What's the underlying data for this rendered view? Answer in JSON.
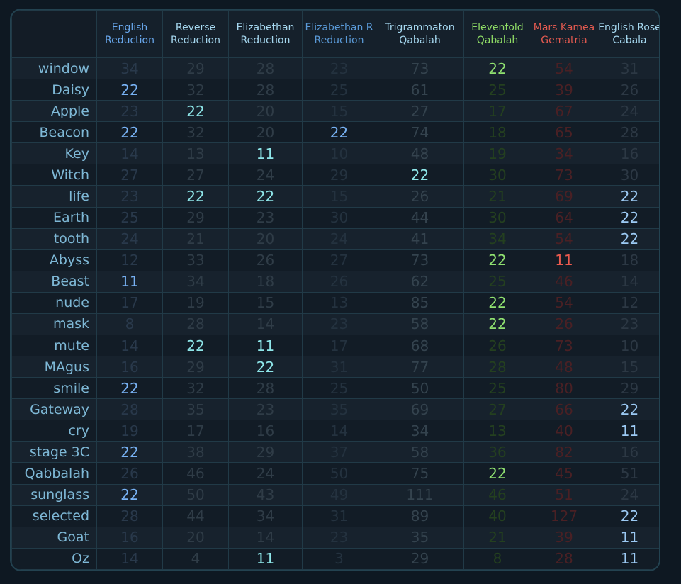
{
  "columns": [
    {
      "label": "English Reduction",
      "color": "#69a8ee",
      "dim": "#29394b",
      "hit": "#78b2f4"
    },
    {
      "label": "Reverse Reduction",
      "color": "#a6d8f0",
      "dim": "#2f3c47",
      "hit": "#8ee6e9"
    },
    {
      "label": "Elizabethan Reduction",
      "color": "#a6d8f0",
      "dim": "#2f3c47",
      "hit": "#8ee6e9"
    },
    {
      "label": "Elizabethan R Reduction",
      "color": "#5a9ad8",
      "dim": "#24323f",
      "hit": "#78b2f4"
    },
    {
      "label": "Trigrammaton Qabalah",
      "color": "#a6d8f0",
      "dim": "#34434e",
      "hit": "#8ee6e9"
    },
    {
      "label": "Elevenfold Qabalah",
      "color": "#8fdc66",
      "dim": "#24401f",
      "hit": "#8fe070"
    },
    {
      "label": "Mars Kamea Gematria",
      "color": "#e45a50",
      "dim": "#4a2024",
      "hit": "#ea5a4e"
    },
    {
      "label": "English Rose Cabala",
      "color": "#a6d8f0",
      "dim": "#2c3844",
      "hit": "#9ccaf4"
    }
  ],
  "rows": [
    {
      "word": "window",
      "values": [
        "34",
        "29",
        "28",
        "23",
        "73",
        "22",
        "54",
        "31"
      ]
    },
    {
      "word": "Daisy",
      "values": [
        "22",
        "32",
        "28",
        "25",
        "61",
        "25",
        "39",
        "26"
      ]
    },
    {
      "word": "Apple",
      "values": [
        "23",
        "22",
        "20",
        "15",
        "27",
        "17",
        "67",
        "24"
      ]
    },
    {
      "word": "Beacon",
      "values": [
        "22",
        "32",
        "20",
        "22",
        "74",
        "18",
        "65",
        "28"
      ]
    },
    {
      "word": "Key",
      "values": [
        "14",
        "13",
        "11",
        "10",
        "48",
        "19",
        "34",
        "16"
      ]
    },
    {
      "word": "Witch",
      "values": [
        "27",
        "27",
        "24",
        "29",
        "22",
        "30",
        "73",
        "30"
      ]
    },
    {
      "word": "life",
      "values": [
        "23",
        "22",
        "22",
        "15",
        "26",
        "21",
        "69",
        "22"
      ]
    },
    {
      "word": "Earth",
      "values": [
        "25",
        "29",
        "23",
        "30",
        "44",
        "30",
        "64",
        "22"
      ]
    },
    {
      "word": "tooth",
      "values": [
        "24",
        "21",
        "20",
        "24",
        "41",
        "34",
        "54",
        "22"
      ]
    },
    {
      "word": "Abyss",
      "values": [
        "12",
        "33",
        "26",
        "27",
        "73",
        "22",
        "11",
        "18"
      ]
    },
    {
      "word": "Beast",
      "values": [
        "11",
        "34",
        "18",
        "26",
        "62",
        "25",
        "46",
        "14"
      ]
    },
    {
      "word": "nude",
      "values": [
        "17",
        "19",
        "15",
        "13",
        "85",
        "22",
        "54",
        "12"
      ]
    },
    {
      "word": "mask",
      "values": [
        "8",
        "28",
        "14",
        "23",
        "58",
        "22",
        "26",
        "23"
      ]
    },
    {
      "word": "mute",
      "values": [
        "14",
        "22",
        "11",
        "17",
        "68",
        "26",
        "73",
        "10"
      ]
    },
    {
      "word": "MAgus",
      "values": [
        "16",
        "29",
        "22",
        "31",
        "77",
        "28",
        "48",
        "15"
      ]
    },
    {
      "word": "smile",
      "values": [
        "22",
        "32",
        "28",
        "25",
        "50",
        "25",
        "80",
        "29"
      ]
    },
    {
      "word": "Gateway",
      "values": [
        "28",
        "35",
        "23",
        "35",
        "69",
        "27",
        "66",
        "22"
      ]
    },
    {
      "word": "cry",
      "values": [
        "19",
        "17",
        "16",
        "14",
        "34",
        "13",
        "40",
        "11"
      ]
    },
    {
      "word": "stage 3C",
      "values": [
        "22",
        "38",
        "29",
        "37",
        "58",
        "36",
        "82",
        "16"
      ]
    },
    {
      "word": "Qabbalah",
      "values": [
        "26",
        "46",
        "24",
        "50",
        "75",
        "22",
        "45",
        "51"
      ]
    },
    {
      "word": "sunglass",
      "values": [
        "22",
        "50",
        "43",
        "49",
        "111",
        "46",
        "51",
        "24"
      ]
    },
    {
      "word": "selected",
      "values": [
        "28",
        "44",
        "34",
        "31",
        "89",
        "40",
        "127",
        "22"
      ]
    },
    {
      "word": "Goat",
      "values": [
        "16",
        "20",
        "14",
        "23",
        "35",
        "21",
        "39",
        "11"
      ]
    },
    {
      "word": "Oz",
      "values": [
        "14",
        "4",
        "11",
        "3",
        "29",
        "8",
        "28",
        "11"
      ]
    }
  ]
}
